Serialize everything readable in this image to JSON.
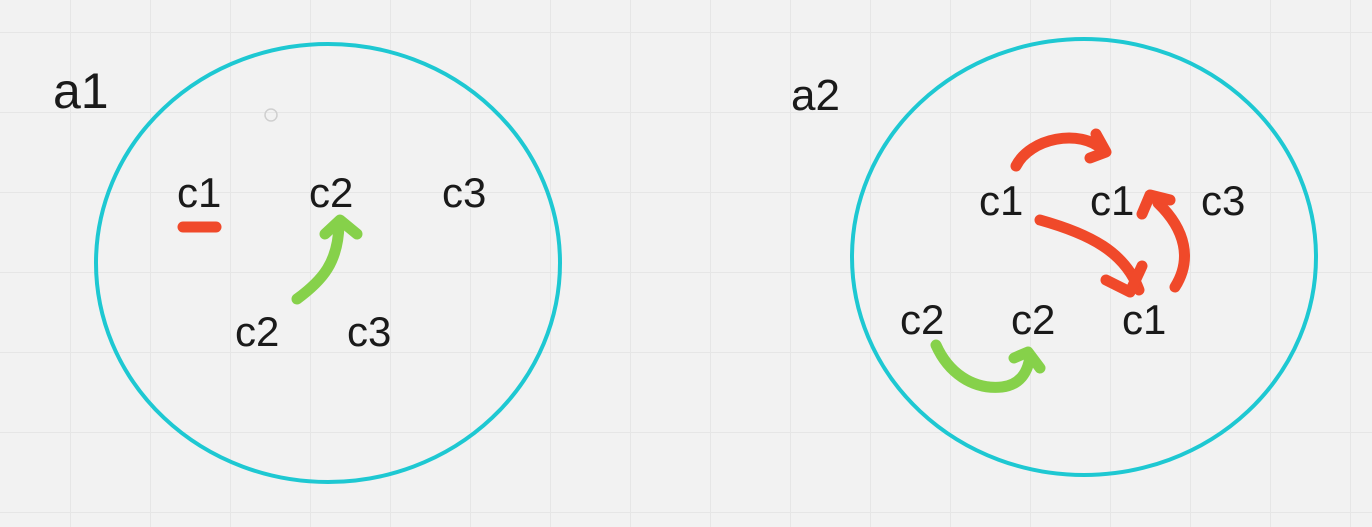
{
  "colors": {
    "ring": "#1ec8d2",
    "red_stroke": "#f0492a",
    "green_stroke": "#86d14a",
    "text": "#1a1a1a",
    "background": "#f2f2f2"
  },
  "group_a1": {
    "label": "a1",
    "items": {
      "c1": "c1",
      "c2_top": "c2",
      "c3_top": "c3",
      "c2_bottom": "c2",
      "c3_bottom": "c3"
    }
  },
  "group_a2": {
    "label": "a2",
    "items": {
      "c1_left": "c1",
      "c1_mid": "c1",
      "c3": "c3",
      "c2_left": "c2",
      "c2_right": "c2",
      "c1_bottom": "c1"
    }
  }
}
